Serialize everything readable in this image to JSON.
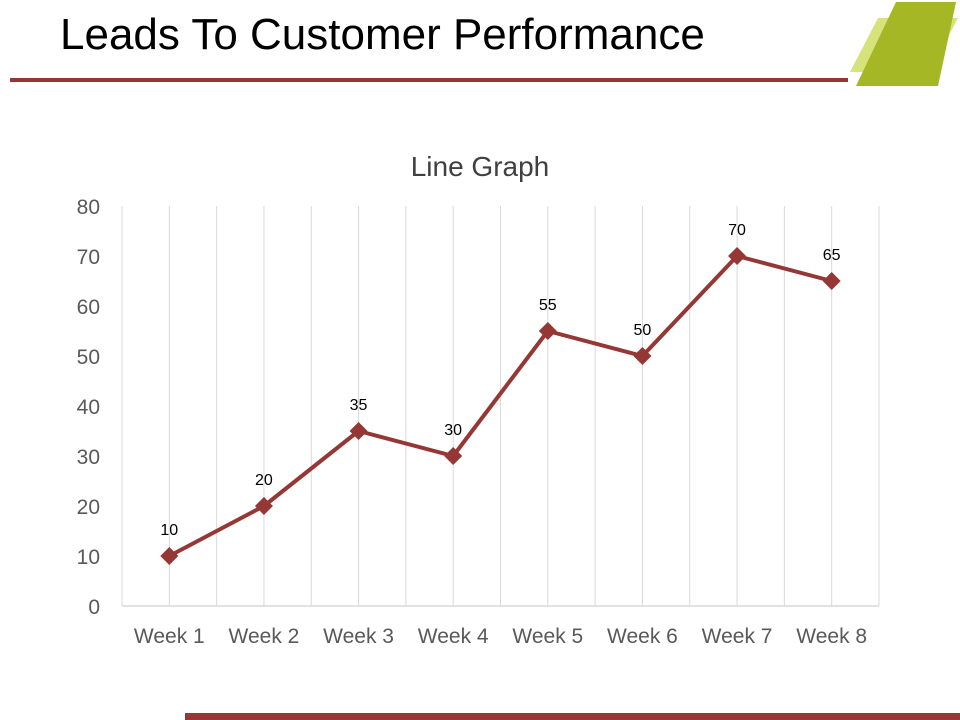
{
  "slide": {
    "title": "Leads To Customer Performance"
  },
  "colors": {
    "accent_red": "#953735",
    "accent_green_dark": "#a5b724",
    "accent_green_light": "#d6e27a",
    "gridline": "#d9d9d9",
    "axis_text": "#595959"
  },
  "chart_data": {
    "type": "line",
    "title": "Line Graph",
    "categories": [
      "Week 1",
      "Week 2",
      "Week 3",
      "Week 4",
      "Week 5",
      "Week 6",
      "Week 7",
      "Week 8"
    ],
    "series": [
      {
        "values": [
          10,
          20,
          35,
          30,
          55,
          50,
          70,
          65
        ]
      }
    ],
    "ylim": [
      0,
      80
    ],
    "yticks": [
      0,
      10,
      20,
      30,
      40,
      50,
      60,
      70,
      80
    ],
    "marker": "diamond",
    "data_labels": true,
    "grid": "vertical"
  }
}
